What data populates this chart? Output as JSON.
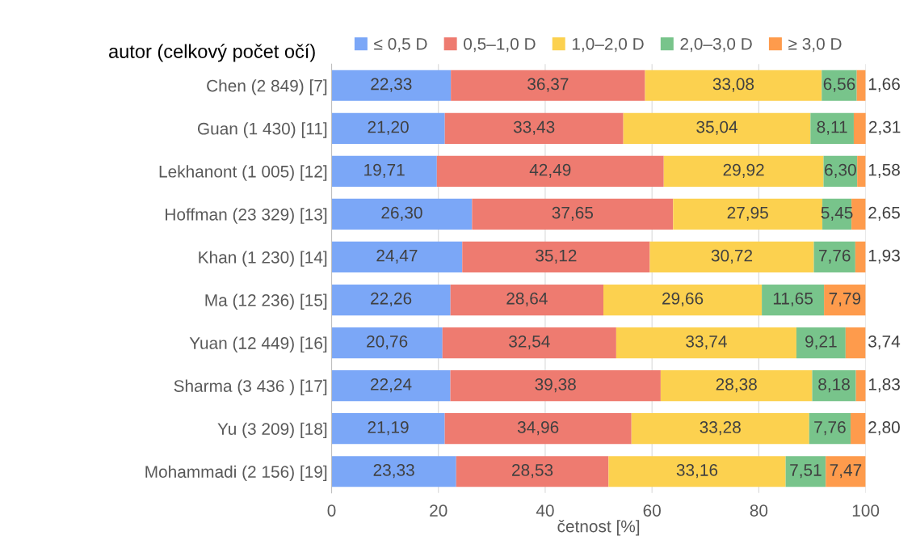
{
  "chart_data": {
    "type": "bar",
    "orientation": "horizontal",
    "stacked": true,
    "ylabel": "autor (celkový počet očí)",
    "xlabel": "četnost [%]",
    "categories": [
      "Chen (2 849) [7]",
      "Guan (1 430) [11]",
      "Lekhanont (1 005) [12]",
      "Hoffman (23 329) [13]",
      "Khan (1 230) [14]",
      "Ma (12 236) [15]",
      "Yuan (12 449) [16]",
      "Sharma (3 436 ) [17]",
      "Yu (3 209) [18]",
      "Mohammadi (2 156) [19]"
    ],
    "series": [
      {
        "name": "≤ 0,5 D",
        "color": "#7ba7f7",
        "values": [
          22.33,
          21.2,
          19.71,
          26.3,
          24.47,
          22.26,
          20.76,
          22.24,
          21.19,
          23.33
        ],
        "value_labels": [
          "22,33",
          "21,20",
          "19,71",
          "26,30",
          "24,47",
          "22,26",
          "20,76",
          "22,24",
          "21,19",
          "23,33"
        ]
      },
      {
        "name": "0,5–1,0 D",
        "color": "#ee7b70",
        "values": [
          36.37,
          33.43,
          42.49,
          37.65,
          35.12,
          28.64,
          32.54,
          39.38,
          34.96,
          28.53
        ],
        "value_labels": [
          "36,37",
          "33,43",
          "42,49",
          "37,65",
          "35,12",
          "28,64",
          "32,54",
          "39,38",
          "34,96",
          "28,53"
        ]
      },
      {
        "name": "1,0–2,0 D",
        "color": "#fcd14f",
        "values": [
          33.08,
          35.04,
          29.92,
          27.95,
          30.72,
          29.66,
          33.74,
          28.38,
          33.28,
          33.16
        ],
        "value_labels": [
          "33,08",
          "35,04",
          "29,92",
          "27,95",
          "30,72",
          "29,66",
          "33,74",
          "28,38",
          "33,28",
          "33,16"
        ]
      },
      {
        "name": "2,0–3,0 D",
        "color": "#78c48b",
        "values": [
          6.56,
          8.11,
          6.3,
          5.45,
          7.76,
          11.65,
          9.21,
          8.18,
          7.76,
          7.51
        ],
        "value_labels": [
          "6,56",
          "8,11",
          "6,30",
          "5,45",
          "7,76",
          "11,65",
          "9,21",
          "8,18",
          "7,76",
          "7,51"
        ]
      },
      {
        "name": "≥ 3,0 D",
        "color": "#fe9b4c",
        "values": [
          1.66,
          2.31,
          1.58,
          2.65,
          1.93,
          7.79,
          3.74,
          1.83,
          2.8,
          7.47
        ],
        "value_labels": [
          "1,66",
          "2,31",
          "1,58",
          "2,65",
          "1,93",
          "7,79",
          "3,74",
          "1,83",
          "2,80",
          "7,47"
        ]
      }
    ],
    "xlim": [
      0,
      100
    ],
    "xticks": [
      0,
      20,
      40,
      60,
      80,
      100
    ],
    "grid": "x",
    "legend": "top"
  }
}
